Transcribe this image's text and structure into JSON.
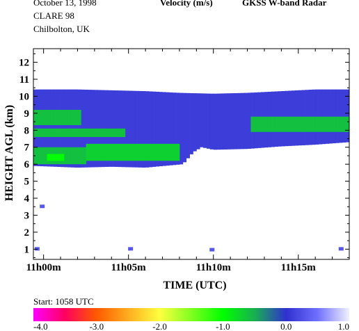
{
  "header": {
    "date": "October  13, 1998",
    "campaign": "CLARE 98",
    "location": "Chilbolton, UK",
    "quantity": "Velocity (m/s)",
    "instrument": "GKSS  W-band Radar"
  },
  "footer": {
    "start": "Start: 1058 UTC"
  },
  "chart_data": {
    "type": "heatmap",
    "xlabel": "TIME (UTC)",
    "ylabel": "HEIGHT AGL (km)",
    "x_ticks": [
      "11h00m",
      "11h05m",
      "11h10m",
      "11h15m"
    ],
    "x_tick_minutes": [
      0,
      5,
      10,
      15
    ],
    "x_range_minutes": [
      -0.6,
      18.0
    ],
    "y_ticks": [
      "1",
      "2",
      "3",
      "4",
      "5",
      "6",
      "7",
      "8",
      "9",
      "10",
      "11",
      "12"
    ],
    "y_range_km": [
      0.4,
      12.8
    ],
    "colorbar": {
      "label_values": [
        "-4.0",
        "-3.0",
        "-2.0",
        "-1.0",
        "0.0",
        "1.0"
      ],
      "range": [
        -4.0,
        1.0
      ],
      "stops": [
        {
          "v": -4.0,
          "color": "#ff00ff"
        },
        {
          "v": -3.5,
          "color": "#ff0060"
        },
        {
          "v": -3.0,
          "color": "#ff5a00"
        },
        {
          "v": -2.0,
          "color": "#ffff40"
        },
        {
          "v": -1.0,
          "color": "#00ff00"
        },
        {
          "v": -0.5,
          "color": "#18b050"
        },
        {
          "v": 0.0,
          "color": "#3030d0"
        },
        {
          "v": 0.5,
          "color": "#7070ff"
        },
        {
          "v": 1.0,
          "color": "#f0f0ff"
        }
      ]
    },
    "cloud_layer": {
      "velocity_typical_ms": 0.1,
      "top_km": [
        [
          -0.6,
          10.4
        ],
        [
          2,
          10.4
        ],
        [
          4,
          10.35
        ],
        [
          6,
          10.3
        ],
        [
          8,
          10.2
        ],
        [
          10,
          10.15
        ],
        [
          12,
          10.2
        ],
        [
          14,
          10.3
        ],
        [
          16,
          10.4
        ],
        [
          18.0,
          10.4
        ]
      ],
      "base_km": [
        [
          -0.6,
          5.9
        ],
        [
          2,
          5.8
        ],
        [
          4,
          5.85
        ],
        [
          6,
          5.8
        ],
        [
          8.2,
          6.0
        ],
        [
          8.8,
          6.7
        ],
        [
          9.3,
          7.0
        ],
        [
          10,
          6.85
        ],
        [
          12,
          6.9
        ],
        [
          14,
          7.05
        ],
        [
          16,
          7.15
        ],
        [
          18.0,
          7.3
        ]
      ]
    },
    "faster_fall_regions": [
      {
        "velocity_ms": -0.6,
        "x_minutes": [
          -0.6,
          2.2
        ],
        "height_km": [
          8.3,
          9.2
        ]
      },
      {
        "velocity_ms": -0.6,
        "x_minutes": [
          -0.6,
          4.8
        ],
        "height_km": [
          7.6,
          8.1
        ]
      },
      {
        "velocity_ms": -0.6,
        "x_minutes": [
          -0.6,
          2.5
        ],
        "height_km": [
          6.0,
          7.0
        ]
      },
      {
        "velocity_ms": -0.7,
        "x_minutes": [
          2.5,
          8.0
        ],
        "height_km": [
          6.2,
          7.2
        ]
      },
      {
        "velocity_ms": -0.6,
        "x_minutes": [
          12.2,
          18.0
        ],
        "height_km": [
          7.9,
          8.8
        ]
      },
      {
        "velocity_ms": -1.0,
        "x_minutes": [
          0.2,
          1.2
        ],
        "height_km": [
          6.2,
          6.6
        ]
      }
    ],
    "isolated_echoes": [
      {
        "x_minutes": -0.1,
        "height_km": 3.5,
        "velocity_ms": 0.3
      },
      {
        "x_minutes": 5.1,
        "height_km": 1.0,
        "velocity_ms": 0.3
      },
      {
        "x_minutes": 9.9,
        "height_km": 0.95,
        "velocity_ms": 0.3
      },
      {
        "x_minutes": 17.5,
        "height_km": 1.0,
        "velocity_ms": 0.3
      },
      {
        "x_minutes": -0.4,
        "height_km": 1.0,
        "velocity_ms": 0.3
      }
    ]
  }
}
